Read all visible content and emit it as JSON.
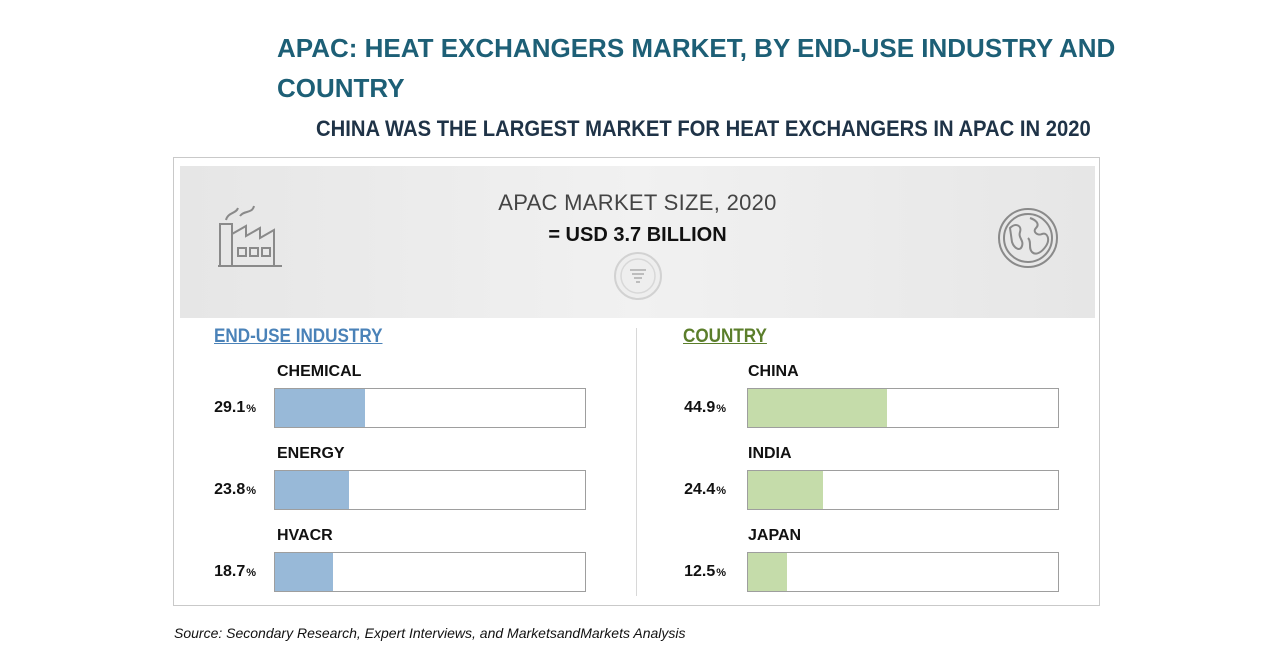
{
  "title": "APAC: HEAT EXCHANGERS MARKET, BY END-USE INDUSTRY AND COUNTRY",
  "subtitle": "CHINA WAS THE LARGEST MARKET FOR HEAT EXCHANGERS IN APAC IN 2020",
  "banner": {
    "title": "APAC MARKET SIZE, 2020",
    "value": "= USD 3.7 BILLION",
    "icons": [
      "factory-icon",
      "funnel-icon",
      "globe-icon"
    ]
  },
  "source": "Source: Secondary Research, Expert Interviews, and MarketsandMarkets Analysis",
  "colors": {
    "end_use_bar": "#98b9d8",
    "country_bar": "#c5dcaa",
    "end_use_heading": "#4a82b8",
    "country_heading": "#5b7e2b"
  },
  "chart_data": [
    {
      "type": "bar",
      "orientation": "horizontal",
      "title": "END-USE INDUSTRY",
      "categories": [
        "CHEMICAL",
        "ENERGY",
        "HVACR"
      ],
      "values": [
        29.1,
        23.8,
        18.7
      ],
      "value_labels": [
        "29.1",
        "23.8",
        "18.7"
      ],
      "unit": "%",
      "xlim": [
        0,
        100
      ]
    },
    {
      "type": "bar",
      "orientation": "horizontal",
      "title": "COUNTRY",
      "categories": [
        "CHINA",
        "INDIA",
        "JAPAN"
      ],
      "values": [
        44.9,
        24.4,
        12.5
      ],
      "value_labels": [
        "44.9",
        "24.4",
        "12.5"
      ],
      "unit": "%",
      "xlim": [
        0,
        100
      ]
    }
  ]
}
